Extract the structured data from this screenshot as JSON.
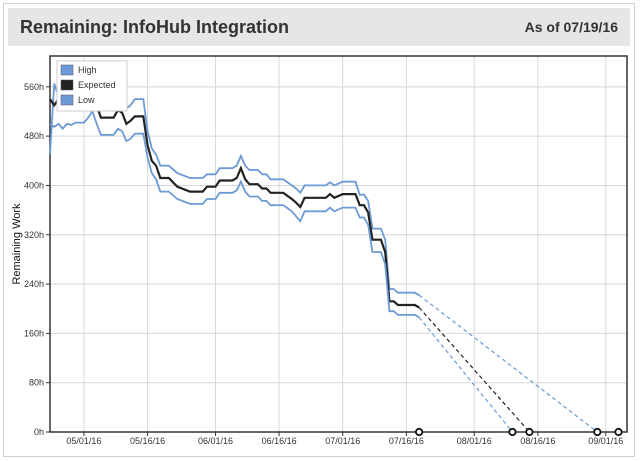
{
  "header": {
    "title": "Remaining: InfoHub Integration",
    "as_of": "As of 07/19/16"
  },
  "colors": {
    "high": "#6c9ad6",
    "expected": "#222222",
    "low": "#6c9ad6",
    "grid": "#d8d8d8",
    "axis": "#333333"
  },
  "chart_data": {
    "type": "line",
    "title": "Remaining: InfoHub Integration",
    "ylabel": "Remaining Work",
    "xlabel": "",
    "x_range": [
      "2016-04-23",
      "2016-09-06"
    ],
    "ylim": [
      0,
      610
    ],
    "y_ticks": [
      0,
      80,
      160,
      240,
      320,
      400,
      480,
      560
    ],
    "y_tick_labels": [
      "0h",
      "80h",
      "160h",
      "240h",
      "320h",
      "400h",
      "480h",
      "560h"
    ],
    "x_ticks": [
      "2016-05-01",
      "2016-05-16",
      "2016-06-01",
      "2016-06-16",
      "2016-07-01",
      "2016-07-16",
      "2016-08-01",
      "2016-08-16",
      "2016-09-01"
    ],
    "x_tick_labels": [
      "05/01/16",
      "05/16/16",
      "06/01/16",
      "06/16/16",
      "07/01/16",
      "07/16/16",
      "08/01/16",
      "08/16/16",
      "09/01/16"
    ],
    "legend": {
      "position": "top-left",
      "entries": [
        "High",
        "Expected",
        "Low"
      ]
    },
    "grid": true,
    "series": [
      {
        "name": "High",
        "color": "#6c9ad6",
        "points": [
          [
            "2016-04-23",
            450
          ],
          [
            "2016-04-24",
            565
          ],
          [
            "2016-04-25",
            545
          ],
          [
            "2016-04-26",
            555
          ],
          [
            "2016-04-27",
            545
          ],
          [
            "2016-04-28",
            556
          ],
          [
            "2016-04-29",
            553
          ],
          [
            "2016-04-30",
            556
          ],
          [
            "2016-05-02",
            560
          ],
          [
            "2016-05-03",
            575
          ],
          [
            "2016-05-05",
            540
          ],
          [
            "2016-05-08",
            540
          ],
          [
            "2016-05-09",
            552
          ],
          [
            "2016-05-10",
            545
          ],
          [
            "2016-05-11",
            525
          ],
          [
            "2016-05-12",
            530
          ],
          [
            "2016-05-13",
            540
          ],
          [
            "2016-05-15",
            540
          ],
          [
            "2016-05-16",
            488
          ],
          [
            "2016-05-17",
            460
          ],
          [
            "2016-05-18",
            450
          ],
          [
            "2016-05-19",
            432
          ],
          [
            "2016-05-21",
            432
          ],
          [
            "2016-05-23",
            420
          ],
          [
            "2016-05-26",
            412
          ],
          [
            "2016-05-29",
            412
          ],
          [
            "2016-05-30",
            418
          ],
          [
            "2016-06-01",
            418
          ],
          [
            "2016-06-02",
            428
          ],
          [
            "2016-06-05",
            428
          ],
          [
            "2016-06-06",
            432
          ],
          [
            "2016-06-07",
            448
          ],
          [
            "2016-06-08",
            432
          ],
          [
            "2016-06-09",
            425
          ],
          [
            "2016-06-11",
            425
          ],
          [
            "2016-06-12",
            418
          ],
          [
            "2016-06-13",
            418
          ],
          [
            "2016-06-14",
            410
          ],
          [
            "2016-06-17",
            410
          ],
          [
            "2016-06-19",
            400
          ],
          [
            "2016-06-20",
            395
          ],
          [
            "2016-06-21",
            388
          ],
          [
            "2016-06-22",
            400
          ],
          [
            "2016-06-27",
            400
          ],
          [
            "2016-06-28",
            405
          ],
          [
            "2016-06-29",
            400
          ],
          [
            "2016-07-01",
            406
          ],
          [
            "2016-07-04",
            406
          ],
          [
            "2016-07-05",
            385
          ],
          [
            "2016-07-06",
            385
          ],
          [
            "2016-07-07",
            375
          ],
          [
            "2016-07-08",
            330
          ],
          [
            "2016-07-10",
            330
          ],
          [
            "2016-07-11",
            312
          ],
          [
            "2016-07-12",
            232
          ],
          [
            "2016-07-13",
            232
          ],
          [
            "2016-07-14",
            226
          ],
          [
            "2016-07-18",
            226
          ],
          [
            "2016-07-19",
            222
          ]
        ]
      },
      {
        "name": "Expected",
        "color": "#222222",
        "points": [
          [
            "2016-04-23",
            540
          ],
          [
            "2016-04-24",
            530
          ],
          [
            "2016-04-25",
            540
          ],
          [
            "2016-04-26",
            530
          ],
          [
            "2016-04-27",
            538
          ],
          [
            "2016-04-28",
            530
          ],
          [
            "2016-04-29",
            538
          ],
          [
            "2016-05-01",
            538
          ],
          [
            "2016-05-02",
            545
          ],
          [
            "2016-05-03",
            555
          ],
          [
            "2016-05-04",
            530
          ],
          [
            "2016-05-05",
            510
          ],
          [
            "2016-05-08",
            510
          ],
          [
            "2016-05-09",
            522
          ],
          [
            "2016-05-10",
            518
          ],
          [
            "2016-05-11",
            500
          ],
          [
            "2016-05-12",
            505
          ],
          [
            "2016-05-13",
            512
          ],
          [
            "2016-05-15",
            512
          ],
          [
            "2016-05-16",
            465
          ],
          [
            "2016-05-17",
            440
          ],
          [
            "2016-05-18",
            432
          ],
          [
            "2016-05-19",
            412
          ],
          [
            "2016-05-21",
            412
          ],
          [
            "2016-05-23",
            398
          ],
          [
            "2016-05-26",
            390
          ],
          [
            "2016-05-29",
            390
          ],
          [
            "2016-05-30",
            398
          ],
          [
            "2016-06-01",
            398
          ],
          [
            "2016-06-02",
            408
          ],
          [
            "2016-06-05",
            408
          ],
          [
            "2016-06-06",
            412
          ],
          [
            "2016-06-07",
            428
          ],
          [
            "2016-06-08",
            410
          ],
          [
            "2016-06-09",
            402
          ],
          [
            "2016-06-11",
            402
          ],
          [
            "2016-06-12",
            395
          ],
          [
            "2016-06-13",
            395
          ],
          [
            "2016-06-14",
            388
          ],
          [
            "2016-06-17",
            388
          ],
          [
            "2016-06-19",
            378
          ],
          [
            "2016-06-20",
            372
          ],
          [
            "2016-06-21",
            365
          ],
          [
            "2016-06-22",
            380
          ],
          [
            "2016-06-27",
            380
          ],
          [
            "2016-06-28",
            386
          ],
          [
            "2016-06-29",
            380
          ],
          [
            "2016-07-01",
            386
          ],
          [
            "2016-07-04",
            386
          ],
          [
            "2016-07-05",
            368
          ],
          [
            "2016-07-06",
            368
          ],
          [
            "2016-07-07",
            356
          ],
          [
            "2016-07-08",
            312
          ],
          [
            "2016-07-10",
            312
          ],
          [
            "2016-07-11",
            292
          ],
          [
            "2016-07-12",
            212
          ],
          [
            "2016-07-13",
            212
          ],
          [
            "2016-07-14",
            206
          ],
          [
            "2016-07-18",
            206
          ],
          [
            "2016-07-19",
            202
          ]
        ]
      },
      {
        "name": "Low",
        "color": "#6c9ad6",
        "points": [
          [
            "2016-04-23",
            500
          ],
          [
            "2016-04-24",
            495
          ],
          [
            "2016-04-25",
            500
          ],
          [
            "2016-04-26",
            492
          ],
          [
            "2016-04-27",
            500
          ],
          [
            "2016-04-28",
            498
          ],
          [
            "2016-04-29",
            502
          ],
          [
            "2016-05-01",
            502
          ],
          [
            "2016-05-02",
            510
          ],
          [
            "2016-05-03",
            520
          ],
          [
            "2016-05-04",
            500
          ],
          [
            "2016-05-05",
            482
          ],
          [
            "2016-05-08",
            482
          ],
          [
            "2016-05-09",
            492
          ],
          [
            "2016-05-10",
            488
          ],
          [
            "2016-05-11",
            472
          ],
          [
            "2016-05-12",
            476
          ],
          [
            "2016-05-13",
            484
          ],
          [
            "2016-05-15",
            484
          ],
          [
            "2016-05-16",
            445
          ],
          [
            "2016-05-17",
            420
          ],
          [
            "2016-05-18",
            410
          ],
          [
            "2016-05-19",
            390
          ],
          [
            "2016-05-21",
            390
          ],
          [
            "2016-05-23",
            378
          ],
          [
            "2016-05-26",
            370
          ],
          [
            "2016-05-29",
            370
          ],
          [
            "2016-05-30",
            378
          ],
          [
            "2016-06-01",
            378
          ],
          [
            "2016-06-02",
            388
          ],
          [
            "2016-06-05",
            388
          ],
          [
            "2016-06-06",
            392
          ],
          [
            "2016-06-07",
            406
          ],
          [
            "2016-06-08",
            390
          ],
          [
            "2016-06-09",
            382
          ],
          [
            "2016-06-11",
            382
          ],
          [
            "2016-06-12",
            375
          ],
          [
            "2016-06-13",
            375
          ],
          [
            "2016-06-14",
            368
          ],
          [
            "2016-06-17",
            368
          ],
          [
            "2016-06-19",
            358
          ],
          [
            "2016-06-20",
            350
          ],
          [
            "2016-06-21",
            342
          ],
          [
            "2016-06-22",
            358
          ],
          [
            "2016-06-27",
            358
          ],
          [
            "2016-06-28",
            364
          ],
          [
            "2016-06-29",
            358
          ],
          [
            "2016-07-01",
            364
          ],
          [
            "2016-07-04",
            364
          ],
          [
            "2016-07-05",
            348
          ],
          [
            "2016-07-06",
            348
          ],
          [
            "2016-07-07",
            336
          ],
          [
            "2016-07-08",
            292
          ],
          [
            "2016-07-10",
            292
          ],
          [
            "2016-07-11",
            272
          ],
          [
            "2016-07-12",
            196
          ],
          [
            "2016-07-13",
            196
          ],
          [
            "2016-07-14",
            190
          ],
          [
            "2016-07-18",
            190
          ],
          [
            "2016-07-19",
            186
          ]
        ]
      }
    ],
    "projections": [
      {
        "series": "High",
        "from": [
          "2016-07-19",
          222
        ],
        "to": [
          "2016-08-30",
          0
        ],
        "color": "#6c9ad6"
      },
      {
        "series": "Expected",
        "from": [
          "2016-07-19",
          202
        ],
        "to": [
          "2016-08-14",
          0
        ],
        "color": "#222222"
      },
      {
        "series": "Low",
        "from": [
          "2016-07-19",
          186
        ],
        "to": [
          "2016-08-10",
          0
        ],
        "color": "#6c9ad6"
      }
    ],
    "markers": [
      {
        "date": "2016-07-19",
        "value": 0
      },
      {
        "date": "2016-08-10",
        "value": 0
      },
      {
        "date": "2016-08-14",
        "value": 0
      },
      {
        "date": "2016-08-30",
        "value": 0
      },
      {
        "date": "2016-09-04",
        "value": 0
      }
    ]
  }
}
